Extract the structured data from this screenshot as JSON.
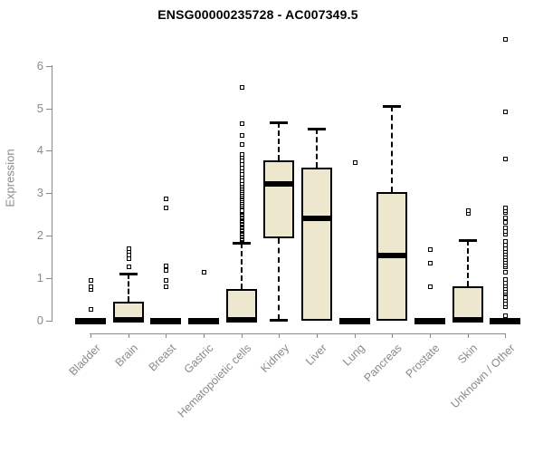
{
  "chart_data": {
    "type": "boxplot",
    "title": "ENSG00000235728 - AC007349.5",
    "ylabel": "Expression",
    "xlabel": "",
    "ylim": [
      0,
      6.8
    ],
    "yticks": [
      0,
      1,
      2,
      3,
      4,
      5,
      6
    ],
    "grid": false,
    "legend": "none",
    "box_fill_color": "#EDE8CD",
    "box_line_color": "#000000",
    "axis_color": "#8A8A8A",
    "categories": [
      "Bladder",
      "Brain",
      "Breast",
      "Gastric",
      "Hematopoietic cells",
      "Kidney",
      "Liver",
      "Lung",
      "Pancreas",
      "Prostate",
      "Skin",
      "Unknown / Other"
    ],
    "boxes": [
      {
        "label": "Bladder",
        "whislo": 0,
        "q1": 0,
        "med": 0,
        "q3": 0,
        "whishi": 0,
        "outliers": [
          0.26,
          0.73,
          0.79,
          0.94
        ]
      },
      {
        "label": "Brain",
        "whislo": 0,
        "q1": 0,
        "med": 0.02,
        "q3": 0.45,
        "whishi": 1.1,
        "outliers": [
          1.27,
          1.47,
          1.55,
          1.63,
          1.7
        ]
      },
      {
        "label": "Breast",
        "whislo": 0,
        "q1": 0,
        "med": 0,
        "q3": 0,
        "whishi": 0,
        "outliers": [
          0.8,
          0.94,
          1.19,
          1.3,
          2.66,
          2.87
        ]
      },
      {
        "label": "Gastric",
        "whislo": 0,
        "q1": 0,
        "med": 0,
        "q3": 0,
        "whishi": 0,
        "outliers": [
          1.15
        ]
      },
      {
        "label": "Hematopoietic cells",
        "whislo": 0,
        "q1": 0,
        "med": 0.02,
        "q3": 0.74,
        "whishi": 1.84,
        "outliers": [
          1.88,
          1.91,
          1.94,
          1.97,
          2.0,
          2.03,
          2.06,
          2.09,
          2.12,
          2.15,
          2.18,
          2.21,
          2.24,
          2.27,
          2.3,
          2.33,
          2.36,
          2.39,
          2.42,
          2.45,
          2.48,
          2.51,
          2.54,
          2.57,
          2.6,
          2.7,
          2.74,
          2.78,
          2.82,
          2.86,
          2.9,
          2.94,
          2.98,
          3.02,
          3.06,
          3.1,
          3.14,
          3.18,
          3.22,
          3.3,
          3.38,
          3.45,
          3.52,
          3.6,
          3.68,
          3.76,
          3.84,
          3.92,
          4.15,
          4.35,
          4.63,
          5.49
        ]
      },
      {
        "label": "Kidney",
        "whislo": 0.02,
        "q1": 1.93,
        "med": 3.23,
        "q3": 3.78,
        "whishi": 4.68,
        "outliers": []
      },
      {
        "label": "Liver",
        "whislo": 0,
        "q1": 0,
        "med": 2.42,
        "q3": 3.6,
        "whishi": 4.51,
        "outliers": []
      },
      {
        "label": "Lung",
        "whislo": 0,
        "q1": 0,
        "med": 0,
        "q3": 0,
        "whishi": 0,
        "outliers": [
          3.72
        ]
      },
      {
        "label": "Pancreas",
        "whislo": 0,
        "q1": 0,
        "med": 1.54,
        "q3": 3.03,
        "whishi": 5.05,
        "outliers": []
      },
      {
        "label": "Prostate",
        "whislo": 0,
        "q1": 0,
        "med": 0,
        "q3": 0,
        "whishi": 0,
        "outliers": [
          0.79,
          1.35,
          1.67
        ]
      },
      {
        "label": "Skin",
        "whislo": 0,
        "q1": 0,
        "med": 0.02,
        "q3": 0.8,
        "whishi": 1.9,
        "outliers": [
          2.52,
          2.59
        ]
      },
      {
        "label": "Unknown / Other",
        "whislo": 0,
        "q1": 0,
        "med": 0,
        "q3": 0,
        "whishi": 0,
        "outliers": [
          0.12,
          0.33,
          0.4,
          0.47,
          0.55,
          0.65,
          0.7,
          0.76,
          0.82,
          0.88,
          0.97,
          1.15,
          1.26,
          1.32,
          1.38,
          1.43,
          1.51,
          1.57,
          1.63,
          1.7,
          1.78,
          1.86,
          2.04,
          2.1,
          2.18,
          2.32,
          2.43,
          2.54,
          2.6,
          2.65,
          3.81,
          4.91,
          6.63
        ]
      }
    ]
  }
}
